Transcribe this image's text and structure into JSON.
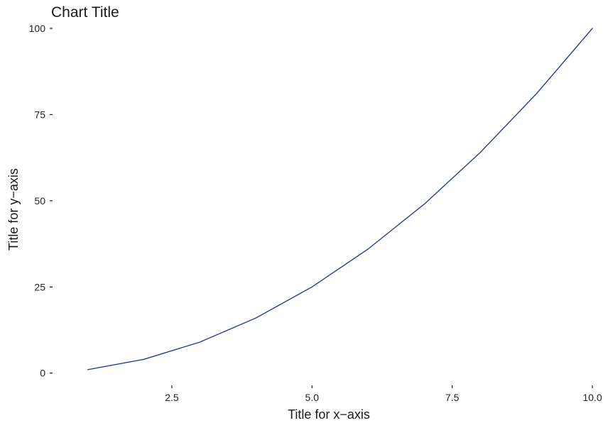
{
  "chart_data": {
    "type": "line",
    "title": "Chart Title",
    "xlabel": "Title for x−axis",
    "ylabel": "Title for y−axis",
    "xlim": [
      0.55,
      10.0
    ],
    "ylim": [
      -5,
      100
    ],
    "x_ticks": [
      {
        "value": 2.5,
        "label": "2.5"
      },
      {
        "value": 5.0,
        "label": "5.0"
      },
      {
        "value": 7.5,
        "label": "7.5"
      },
      {
        "value": 10.0,
        "label": "10.0"
      }
    ],
    "y_ticks": [
      {
        "value": 0,
        "label": "0"
      },
      {
        "value": 25,
        "label": "25"
      },
      {
        "value": 50,
        "label": "50"
      },
      {
        "value": 75,
        "label": "75"
      },
      {
        "value": 100,
        "label": "100"
      }
    ],
    "grid": false,
    "series": [
      {
        "color": "#2b3d96",
        "x": [
          1,
          2,
          3,
          4,
          5,
          6,
          7,
          8,
          9,
          10
        ],
        "y": [
          1,
          4,
          9,
          16,
          25,
          36,
          49,
          64,
          81,
          100
        ]
      }
    ]
  }
}
